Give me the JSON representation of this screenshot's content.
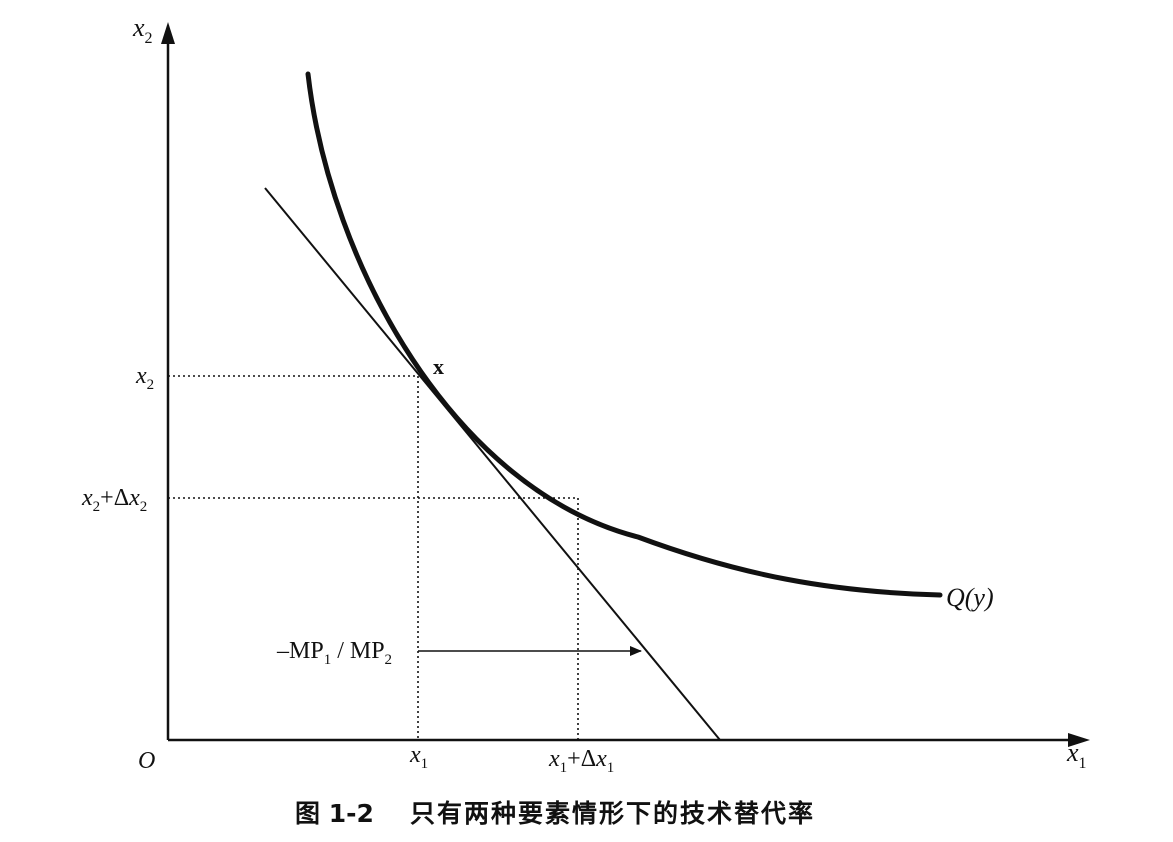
{
  "figure": {
    "caption_number": "图 1-2",
    "caption_title": "只有两种要素情形下的技术替代率"
  },
  "axes": {
    "origin_label": "O",
    "x_axis_label": {
      "base": "x",
      "sub": "1"
    },
    "y_axis_label": {
      "base": "x",
      "sub": "2"
    }
  },
  "ticks": {
    "x_tick_1": {
      "base": "x",
      "sub": "1"
    },
    "x_tick_2": {
      "base": "x",
      "sub": "1",
      "suffix": "+Δ",
      "base2": "x",
      "sub2": "1"
    },
    "y_tick_1": {
      "base": "x",
      "sub": "2"
    },
    "y_tick_2": {
      "base": "x",
      "sub": "2",
      "suffix": "+Δ",
      "base2": "x",
      "sub2": "2"
    }
  },
  "annotations": {
    "point_label": "x",
    "curve_label": "Q(y)",
    "slope_label": {
      "prefix": "–MP",
      "sub1": "1",
      "middle": " / MP",
      "sub2": "2"
    }
  },
  "colors": {
    "ink": "#111111",
    "background": "#ffffff"
  }
}
